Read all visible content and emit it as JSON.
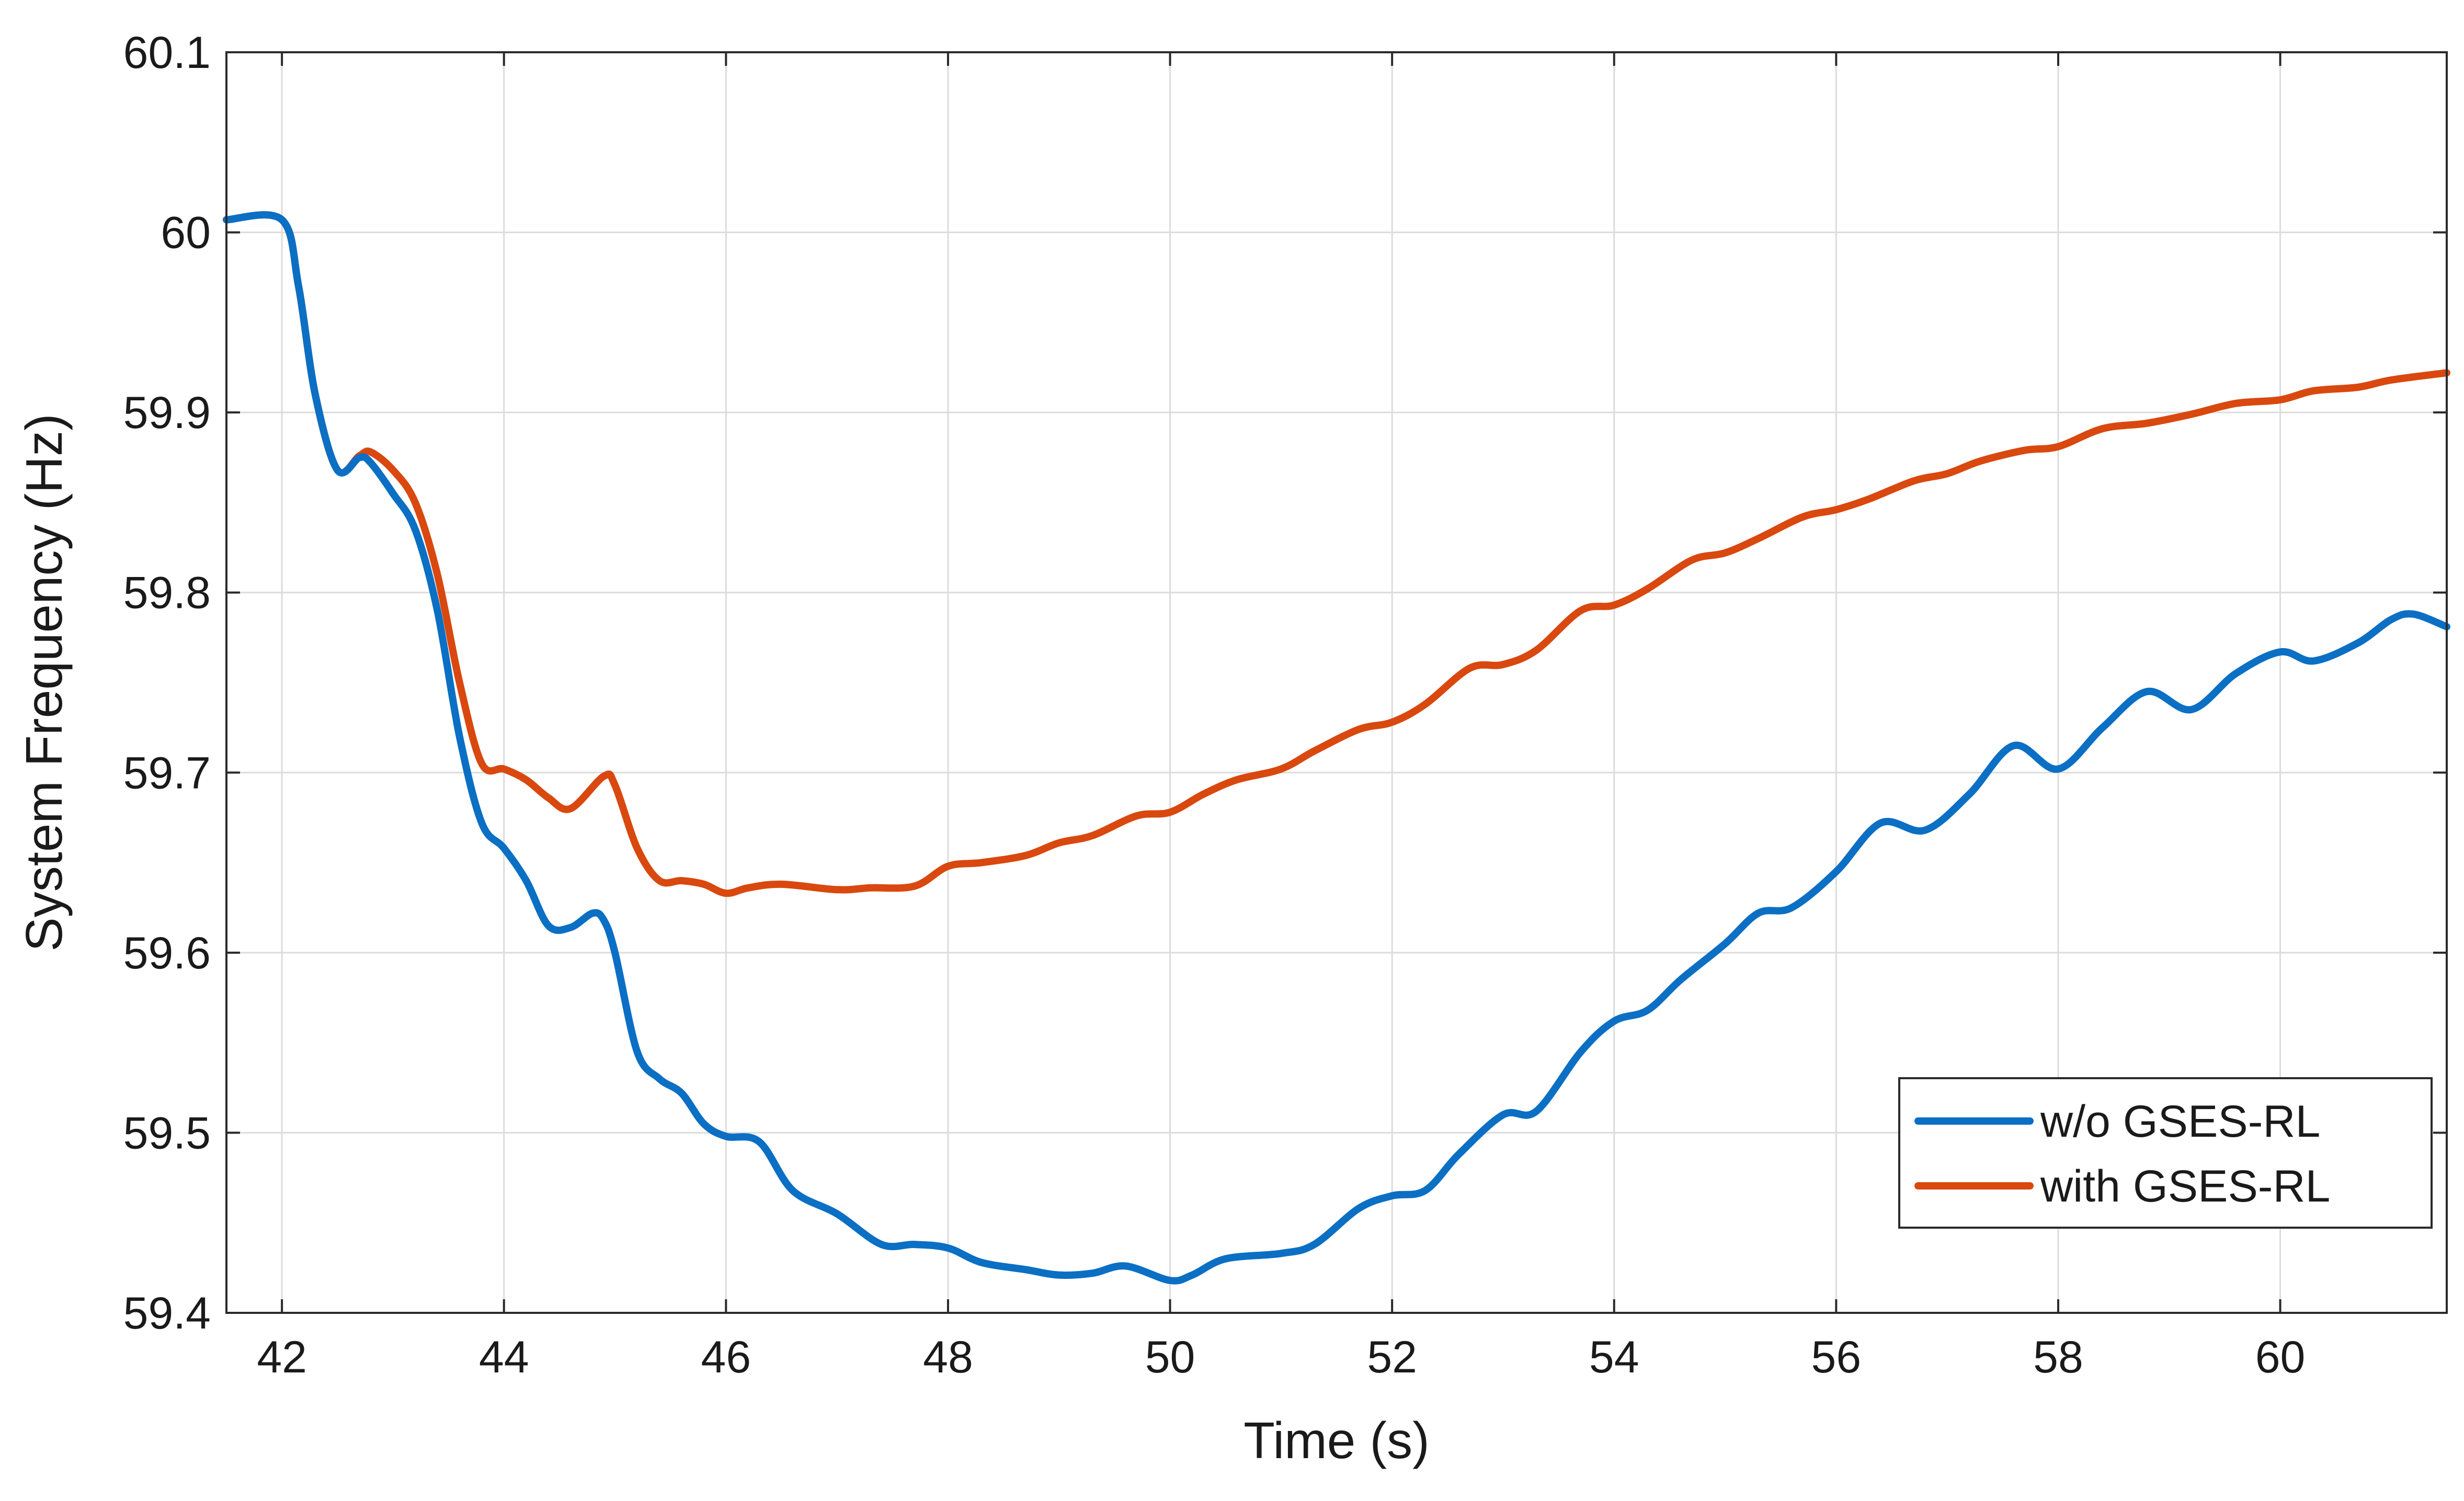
{
  "chart_data": {
    "type": "line",
    "xlabel": "Time (s)",
    "ylabel": "System Frequency (Hz)",
    "xlim": [
      41.5,
      61.5
    ],
    "ylim": [
      59.4,
      60.1
    ],
    "xticks": [
      42,
      44,
      46,
      48,
      50,
      52,
      54,
      56,
      58,
      60
    ],
    "yticks": [
      59.4,
      59.5,
      59.6,
      59.7,
      59.8,
      59.9,
      60,
      60.1
    ],
    "xtick_labels": [
      "42",
      "44",
      "46",
      "48",
      "50",
      "52",
      "54",
      "56",
      "58",
      "60"
    ],
    "ytick_labels": [
      "59.4",
      "59.5",
      "59.6",
      "59.7",
      "59.8",
      "59.9",
      "60",
      "60.1"
    ],
    "grid": true,
    "legend_position": "bottom-right",
    "series": [
      {
        "name": "w/o GSES-RL",
        "color": "#0b6fc4",
        "points": [
          [
            41.5,
            60.007
          ],
          [
            42.0,
            60.007
          ],
          [
            42.15,
            59.97
          ],
          [
            42.3,
            59.91
          ],
          [
            42.5,
            59.868
          ],
          [
            42.7,
            59.875
          ],
          [
            42.8,
            59.872
          ],
          [
            43.0,
            59.855
          ],
          [
            43.2,
            59.835
          ],
          [
            43.4,
            59.79
          ],
          [
            43.6,
            59.72
          ],
          [
            43.8,
            59.672
          ],
          [
            44.0,
            59.658
          ],
          [
            44.2,
            59.64
          ],
          [
            44.4,
            59.615
          ],
          [
            44.6,
            59.614
          ],
          [
            44.8,
            59.622
          ],
          [
            44.9,
            59.618
          ],
          [
            45.0,
            59.6
          ],
          [
            45.2,
            59.545
          ],
          [
            45.4,
            59.53
          ],
          [
            45.6,
            59.522
          ],
          [
            45.8,
            59.505
          ],
          [
            46.0,
            59.498
          ],
          [
            46.3,
            59.495
          ],
          [
            46.6,
            59.468
          ],
          [
            47.0,
            59.455
          ],
          [
            47.4,
            59.438
          ],
          [
            47.7,
            59.438
          ],
          [
            48.0,
            59.436
          ],
          [
            48.3,
            59.428
          ],
          [
            48.7,
            59.424
          ],
          [
            49.0,
            59.421
          ],
          [
            49.3,
            59.422
          ],
          [
            49.6,
            59.426
          ],
          [
            50.0,
            59.418
          ],
          [
            50.2,
            59.421
          ],
          [
            50.5,
            59.43
          ],
          [
            51.0,
            59.433
          ],
          [
            51.3,
            59.438
          ],
          [
            51.7,
            59.458
          ],
          [
            52.0,
            59.465
          ],
          [
            52.3,
            59.468
          ],
          [
            52.6,
            59.488
          ],
          [
            53.0,
            59.51
          ],
          [
            53.3,
            59.512
          ],
          [
            53.7,
            59.545
          ],
          [
            54.0,
            59.562
          ],
          [
            54.3,
            59.568
          ],
          [
            54.6,
            59.585
          ],
          [
            55.0,
            59.605
          ],
          [
            55.3,
            59.622
          ],
          [
            55.6,
            59.625
          ],
          [
            56.0,
            59.645
          ],
          [
            56.4,
            59.672
          ],
          [
            56.8,
            59.668
          ],
          [
            57.2,
            59.688
          ],
          [
            57.6,
            59.715
          ],
          [
            58.0,
            59.702
          ],
          [
            58.4,
            59.725
          ],
          [
            58.8,
            59.745
          ],
          [
            59.2,
            59.735
          ],
          [
            59.6,
            59.755
          ],
          [
            60.0,
            59.767
          ],
          [
            60.3,
            59.762
          ],
          [
            60.7,
            59.772
          ],
          [
            61.0,
            59.785
          ],
          [
            61.2,
            59.788
          ],
          [
            61.5,
            59.781
          ]
        ]
      },
      {
        "name": "with GSES-RL",
        "color": "#d9480f",
        "points": [
          [
            41.5,
            60.007
          ],
          [
            42.0,
            60.007
          ],
          [
            42.15,
            59.97
          ],
          [
            42.3,
            59.91
          ],
          [
            42.5,
            59.868
          ],
          [
            42.7,
            59.876
          ],
          [
            42.8,
            59.878
          ],
          [
            43.0,
            59.868
          ],
          [
            43.2,
            59.85
          ],
          [
            43.4,
            59.81
          ],
          [
            43.6,
            59.75
          ],
          [
            43.8,
            59.705
          ],
          [
            44.0,
            59.702
          ],
          [
            44.2,
            59.696
          ],
          [
            44.4,
            59.686
          ],
          [
            44.6,
            59.68
          ],
          [
            44.9,
            59.698
          ],
          [
            45.0,
            59.693
          ],
          [
            45.2,
            59.658
          ],
          [
            45.4,
            59.64
          ],
          [
            45.6,
            59.64
          ],
          [
            45.8,
            59.638
          ],
          [
            46.0,
            59.633
          ],
          [
            46.2,
            59.636
          ],
          [
            46.5,
            59.638
          ],
          [
            47.0,
            59.635
          ],
          [
            47.3,
            59.636
          ],
          [
            47.7,
            59.637
          ],
          [
            48.0,
            59.648
          ],
          [
            48.3,
            59.65
          ],
          [
            48.7,
            59.654
          ],
          [
            49.0,
            59.661
          ],
          [
            49.3,
            59.665
          ],
          [
            49.7,
            59.676
          ],
          [
            50.0,
            59.678
          ],
          [
            50.3,
            59.688
          ],
          [
            50.6,
            59.696
          ],
          [
            51.0,
            59.702
          ],
          [
            51.3,
            59.712
          ],
          [
            51.7,
            59.724
          ],
          [
            52.0,
            59.728
          ],
          [
            52.3,
            59.738
          ],
          [
            52.7,
            59.758
          ],
          [
            53.0,
            59.76
          ],
          [
            53.3,
            59.768
          ],
          [
            53.7,
            59.79
          ],
          [
            54.0,
            59.793
          ],
          [
            54.3,
            59.802
          ],
          [
            54.7,
            59.818
          ],
          [
            55.0,
            59.822
          ],
          [
            55.3,
            59.83
          ],
          [
            55.7,
            59.842
          ],
          [
            56.0,
            59.846
          ],
          [
            56.3,
            59.852
          ],
          [
            56.7,
            59.862
          ],
          [
            57.0,
            59.866
          ],
          [
            57.3,
            59.873
          ],
          [
            57.7,
            59.879
          ],
          [
            58.0,
            59.881
          ],
          [
            58.4,
            59.891
          ],
          [
            58.8,
            59.894
          ],
          [
            59.2,
            59.899
          ],
          [
            59.6,
            59.905
          ],
          [
            60.0,
            59.907
          ],
          [
            60.3,
            59.912
          ],
          [
            60.7,
            59.914
          ],
          [
            61.0,
            59.918
          ],
          [
            61.5,
            59.922
          ]
        ]
      }
    ]
  }
}
